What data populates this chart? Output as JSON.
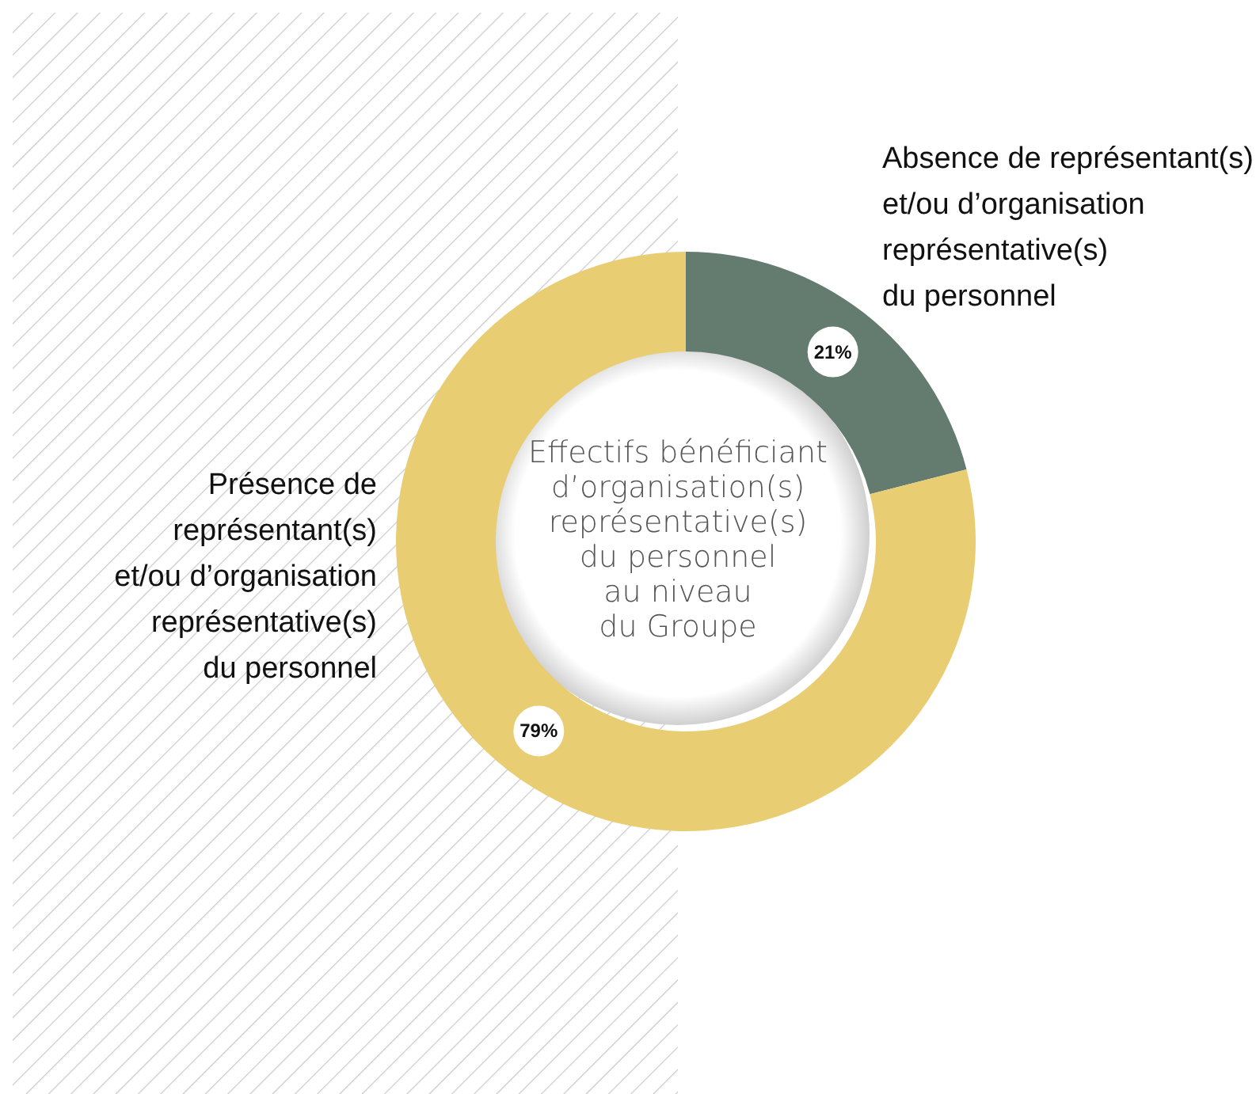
{
  "chart_data": {
    "type": "donut",
    "title": "Effectifs bénéficiant\nd’organisation(s)\nreprésentative(s)\ndu personnel\nau niveau\ndu Groupe",
    "categories": [
      "Absence de représentant(s)\net/ou d’organisation\nreprésentative(s)\ndu personnel",
      "Présence de\nreprésentant(s)\net/ou d’organisation\nreprésentative(s)\ndu personnel"
    ],
    "values": [
      21,
      79
    ],
    "colors": [
      "#647b6f",
      "#e8cd72"
    ],
    "value_labels": [
      "21%",
      "79%"
    ]
  }
}
